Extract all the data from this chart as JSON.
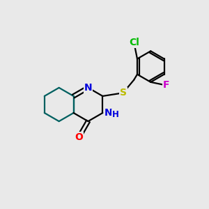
{
  "background_color": "#e9e9e9",
  "atom_colors": {
    "N": "#0000dd",
    "O": "#ff0000",
    "S": "#bbbb00",
    "Cl": "#00bb00",
    "F": "#cc00cc",
    "C": "#000000",
    "H": "#0000dd"
  },
  "bond_color": "#000000",
  "ring_bond_color": "#006060",
  "figsize": [
    3.0,
    3.0
  ],
  "dpi": 100
}
